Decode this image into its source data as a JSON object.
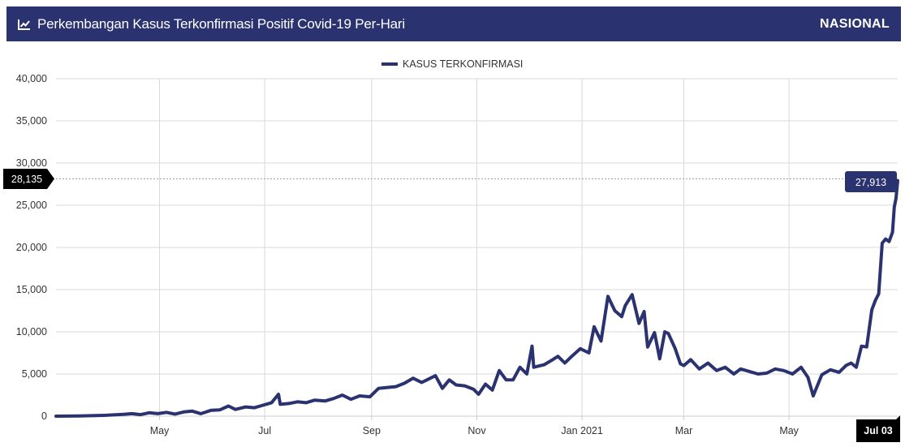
{
  "header": {
    "title": "Perkembangan Kasus Terkonfirmasi Positif Covid-19 Per-Hari",
    "scope_label": "NASIONAL",
    "icon": "line-chart-icon"
  },
  "colors": {
    "header_bg": "#2a3270",
    "series": "#2a3270",
    "grid": "#d9d9d9",
    "crosshair": "#999999",
    "y_badge": "#000000",
    "x_badge": "#000000"
  },
  "crosshair": {
    "y_value": 28135,
    "y_label": "28,135",
    "x_label": "Jul 03",
    "point_label": "27,913"
  },
  "chart_data": {
    "type": "line",
    "x_range": [
      "2020-03-02",
      "2021-07-03"
    ],
    "ylim": [
      0,
      40000
    ],
    "y_ticks": [
      0,
      5000,
      10000,
      15000,
      20000,
      25000,
      30000,
      35000,
      40000
    ],
    "y_tick_labels": [
      "0",
      "5,000",
      "10,000",
      "15,000",
      "20,000",
      "25,000",
      "30,000",
      "35,000",
      "40,000"
    ],
    "x_ticks": [
      {
        "date": "2020-05-01",
        "label": "May"
      },
      {
        "date": "2020-07-01",
        "label": "Jul"
      },
      {
        "date": "2020-09-01",
        "label": "Sep"
      },
      {
        "date": "2020-11-01",
        "label": "Nov"
      },
      {
        "date": "2021-01-01",
        "label": "Jan 2021"
      },
      {
        "date": "2021-03-01",
        "label": "Mar"
      },
      {
        "date": "2021-05-01",
        "label": "May"
      }
    ],
    "grid": true,
    "legend": "top-center",
    "series": [
      {
        "name": "KASUS TERKONFIRMASI",
        "points": [
          [
            "2020-03-02",
            2
          ],
          [
            "2020-03-15",
            20
          ],
          [
            "2020-03-31",
            110
          ],
          [
            "2020-04-10",
            220
          ],
          [
            "2020-04-15",
            300
          ],
          [
            "2020-04-20",
            180
          ],
          [
            "2020-04-25",
            400
          ],
          [
            "2020-04-30",
            300
          ],
          [
            "2020-05-05",
            450
          ],
          [
            "2020-05-10",
            250
          ],
          [
            "2020-05-15",
            500
          ],
          [
            "2020-05-20",
            600
          ],
          [
            "2020-05-25",
            300
          ],
          [
            "2020-05-31",
            700
          ],
          [
            "2020-06-05",
            750
          ],
          [
            "2020-06-10",
            1200
          ],
          [
            "2020-06-14",
            800
          ],
          [
            "2020-06-20",
            1100
          ],
          [
            "2020-06-25",
            1000
          ],
          [
            "2020-06-30",
            1300
          ],
          [
            "2020-07-05",
            1600
          ],
          [
            "2020-07-09",
            2600
          ],
          [
            "2020-07-10",
            1400
          ],
          [
            "2020-07-15",
            1500
          ],
          [
            "2020-07-20",
            1700
          ],
          [
            "2020-07-25",
            1600
          ],
          [
            "2020-07-30",
            1900
          ],
          [
            "2020-08-05",
            1800
          ],
          [
            "2020-08-10",
            2100
          ],
          [
            "2020-08-15",
            2500
          ],
          [
            "2020-08-20",
            2000
          ],
          [
            "2020-08-25",
            2400
          ],
          [
            "2020-08-31",
            2300
          ],
          [
            "2020-09-05",
            3300
          ],
          [
            "2020-09-10",
            3400
          ],
          [
            "2020-09-15",
            3500
          ],
          [
            "2020-09-20",
            3900
          ],
          [
            "2020-09-25",
            4500
          ],
          [
            "2020-09-30",
            4000
          ],
          [
            "2020-10-03",
            4300
          ],
          [
            "2020-10-08",
            4800
          ],
          [
            "2020-10-12",
            3300
          ],
          [
            "2020-10-16",
            4300
          ],
          [
            "2020-10-20",
            3700
          ],
          [
            "2020-10-25",
            3600
          ],
          [
            "2020-10-30",
            3200
          ],
          [
            "2020-11-02",
            2600
          ],
          [
            "2020-11-06",
            3800
          ],
          [
            "2020-11-10",
            3100
          ],
          [
            "2020-11-14",
            5400
          ],
          [
            "2020-11-18",
            4300
          ],
          [
            "2020-11-22",
            4300
          ],
          [
            "2020-11-26",
            5800
          ],
          [
            "2020-11-30",
            5000
          ],
          [
            "2020-12-03",
            8300
          ],
          [
            "2020-12-04",
            5800
          ],
          [
            "2020-12-10",
            6100
          ],
          [
            "2020-12-15",
            6700
          ],
          [
            "2020-12-18",
            7100
          ],
          [
            "2020-12-22",
            6300
          ],
          [
            "2020-12-26",
            7100
          ],
          [
            "2020-12-31",
            8000
          ],
          [
            "2021-01-05",
            7500
          ],
          [
            "2021-01-08",
            10600
          ],
          [
            "2021-01-12",
            8900
          ],
          [
            "2021-01-16",
            14200
          ],
          [
            "2021-01-20",
            12500
          ],
          [
            "2021-01-24",
            11800
          ],
          [
            "2021-01-26",
            13100
          ],
          [
            "2021-01-30",
            14400
          ],
          [
            "2021-02-03",
            11000
          ],
          [
            "2021-02-06",
            12400
          ],
          [
            "2021-02-08",
            8200
          ],
          [
            "2021-02-12",
            9900
          ],
          [
            "2021-02-15",
            6800
          ],
          [
            "2021-02-18",
            10000
          ],
          [
            "2021-02-20",
            9800
          ],
          [
            "2021-02-24",
            8000
          ],
          [
            "2021-02-27",
            6200
          ],
          [
            "2021-03-01",
            6000
          ],
          [
            "2021-03-05",
            6700
          ],
          [
            "2021-03-10",
            5600
          ],
          [
            "2021-03-15",
            6300
          ],
          [
            "2021-03-20",
            5400
          ],
          [
            "2021-03-25",
            5800
          ],
          [
            "2021-03-30",
            5000
          ],
          [
            "2021-04-03",
            5600
          ],
          [
            "2021-04-08",
            5300
          ],
          [
            "2021-04-13",
            5000
          ],
          [
            "2021-04-18",
            5100
          ],
          [
            "2021-04-23",
            5600
          ],
          [
            "2021-04-28",
            5400
          ],
          [
            "2021-05-03",
            5000
          ],
          [
            "2021-05-08",
            5800
          ],
          [
            "2021-05-12",
            4600
          ],
          [
            "2021-05-15",
            2400
          ],
          [
            "2021-05-20",
            4900
          ],
          [
            "2021-05-25",
            5500
          ],
          [
            "2021-05-30",
            5200
          ],
          [
            "2021-06-03",
            6000
          ],
          [
            "2021-06-06",
            6300
          ],
          [
            "2021-06-09",
            5800
          ],
          [
            "2021-06-12",
            8300
          ],
          [
            "2021-06-15",
            8200
          ],
          [
            "2021-06-18",
            12600
          ],
          [
            "2021-06-20",
            13700
          ],
          [
            "2021-06-22",
            14500
          ],
          [
            "2021-06-24",
            20500
          ],
          [
            "2021-06-26",
            21000
          ],
          [
            "2021-06-28",
            20700
          ],
          [
            "2021-06-30",
            21800
          ],
          [
            "2021-07-01",
            24800
          ],
          [
            "2021-07-02",
            25800
          ],
          [
            "2021-07-03",
            27913
          ]
        ]
      }
    ]
  }
}
